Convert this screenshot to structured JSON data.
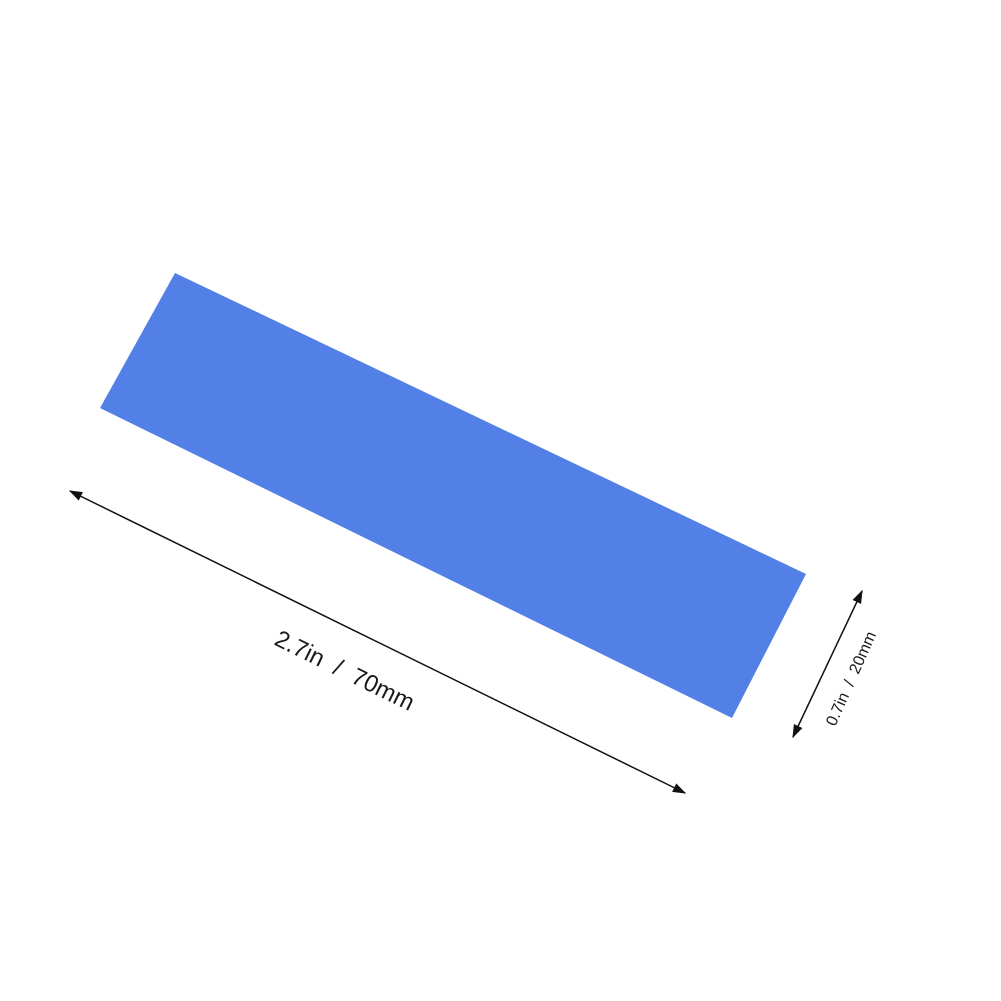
{
  "colors": {
    "strip_fill": "#5280E6",
    "line": "#111111",
    "background": "#ffffff"
  },
  "dimensions": {
    "length_label": "2.7in  /  70mm",
    "width_label": "0.7in  /  20mm"
  }
}
